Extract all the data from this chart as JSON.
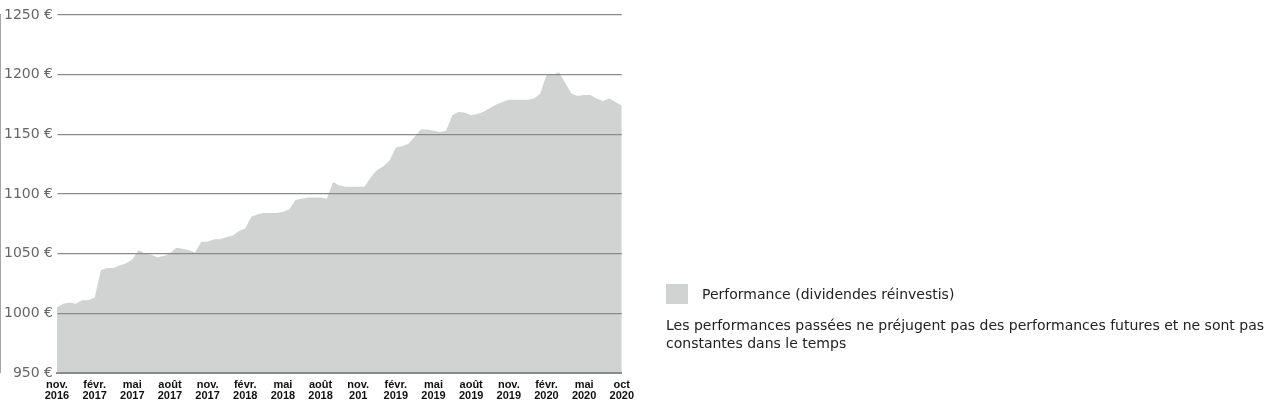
{
  "chart_data": {
    "type": "area",
    "categories": [
      "nov. 2016",
      null,
      null,
      null,
      null,
      null,
      "févr. 2017",
      null,
      null,
      null,
      null,
      null,
      "mai 2017",
      null,
      null,
      null,
      null,
      null,
      "août 2017",
      null,
      null,
      null,
      null,
      null,
      "nov. 2017",
      null,
      null,
      null,
      null,
      null,
      "févr. 2018",
      null,
      null,
      null,
      null,
      null,
      "mai 2018",
      null,
      null,
      null,
      null,
      null,
      "août 2018",
      null,
      null,
      null,
      null,
      null,
      "nov. 201",
      null,
      null,
      null,
      null,
      null,
      "févr. 2019",
      null,
      null,
      null,
      null,
      null,
      "mai 2019",
      null,
      null,
      null,
      null,
      null,
      "août 2019",
      null,
      null,
      null,
      null,
      null,
      "nov. 2019",
      null,
      null,
      null,
      null,
      null,
      "févr. 2020",
      null,
      null,
      null,
      null,
      null,
      "mai 2020",
      null,
      null,
      null,
      null,
      null,
      "oct 2020"
    ],
    "series": [
      {
        "name": "Performance (dividendes réinvestis)",
        "color": "#d1d2d2",
        "values": [
          1005,
          1008,
          1009,
          1008,
          1011,
          1011,
          1013,
          1036,
          1038,
          1038,
          1040,
          1042,
          1045,
          1053,
          1050,
          1049,
          1047,
          1048,
          1050,
          1055,
          1054,
          1053,
          1051,
          1060,
          1060,
          1062,
          1062,
          1064,
          1065,
          1069,
          1071,
          1081,
          1083,
          1084,
          1084,
          1084,
          1085,
          1087,
          1095,
          1096,
          1097,
          1097,
          1097,
          1096,
          1110,
          1107,
          1106,
          1106,
          1106,
          1106,
          1114,
          1120,
          1123,
          1128,
          1139,
          1140,
          1142,
          1148,
          1154,
          1154,
          1153,
          1152,
          1153,
          1166,
          1169,
          1168,
          1166,
          1167,
          1169,
          1172,
          1175,
          1177,
          1179,
          1179,
          1179,
          1179,
          1180,
          1184,
          1200,
          1200,
          1202,
          1193,
          1184,
          1182,
          1183,
          1183,
          1180,
          1178,
          1180,
          1177,
          1174
        ]
      }
    ],
    "ylim": [
      950,
      1250
    ],
    "yticks": [
      {
        "value": 950,
        "label": "950 €"
      },
      {
        "value": 1000,
        "label": "1000 €"
      },
      {
        "value": 1050,
        "label": "1050 €"
      },
      {
        "value": 1100,
        "label": "1100 €"
      },
      {
        "value": 1150,
        "label": "1150 €"
      },
      {
        "value": 1200,
        "label": "1200 €"
      },
      {
        "value": 1250,
        "label": "1250 €"
      }
    ],
    "grid": "y",
    "legend": "right",
    "annotations": [
      "Les performances passées ne préjugent pas des performances futures et ne sont pas constantes dans le temps"
    ]
  }
}
